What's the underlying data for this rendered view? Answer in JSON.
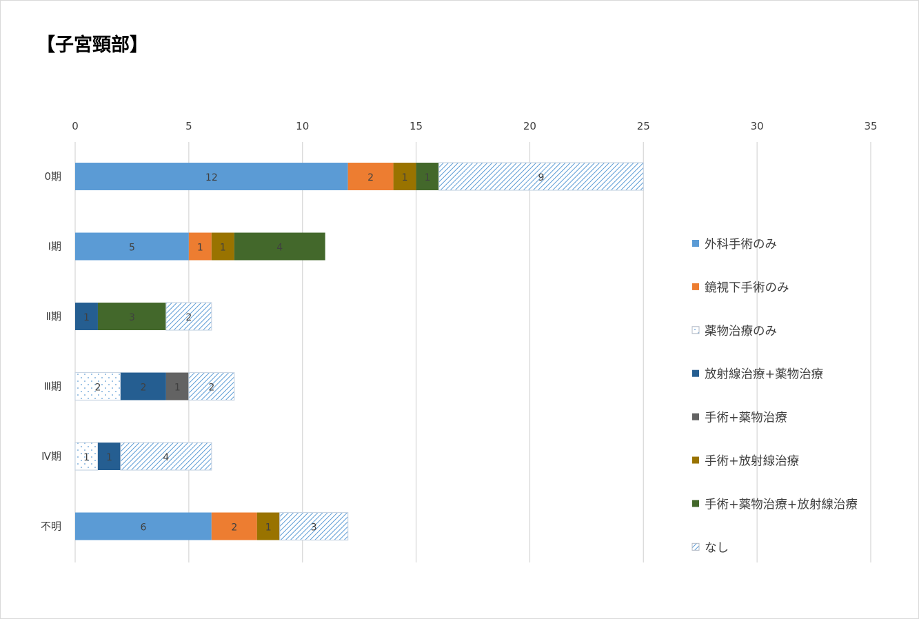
{
  "chart_data": {
    "type": "bar",
    "orientation": "horizontal",
    "stacked": true,
    "title": "【子宮頸部】",
    "xlabel": "",
    "ylabel": "",
    "xlim": [
      0,
      35
    ],
    "x_ticks": [
      0,
      5,
      10,
      15,
      20,
      25,
      30,
      35
    ],
    "grid": true,
    "legend_position": "right",
    "categories": [
      "0期",
      "Ⅰ期",
      "Ⅱ期",
      "Ⅲ期",
      "Ⅳ期",
      "不明"
    ],
    "series": [
      {
        "name": "外科手術のみ",
        "color": "#5b9bd5",
        "pattern": "solid",
        "values": [
          12,
          5,
          0,
          0,
          0,
          6
        ]
      },
      {
        "name": "鏡視下手術のみ",
        "color": "#ed7d31",
        "pattern": "solid",
        "values": [
          2,
          1,
          0,
          0,
          0,
          2
        ]
      },
      {
        "name": "薬物治療のみ",
        "color": "#5b9bd5",
        "pattern": "dots",
        "values": [
          0,
          0,
          0,
          2,
          1,
          0
        ]
      },
      {
        "name": "放射線治療+薬物治療",
        "color": "#255e91",
        "pattern": "solid",
        "values": [
          0,
          0,
          1,
          2,
          1,
          0
        ]
      },
      {
        "name": "手術+薬物治療",
        "color": "#636363",
        "pattern": "solid",
        "values": [
          0,
          0,
          0,
          1,
          0,
          0
        ]
      },
      {
        "name": "手術+放射線治療",
        "color": "#997300",
        "pattern": "solid",
        "values": [
          1,
          1,
          0,
          0,
          0,
          1
        ]
      },
      {
        "name": "手術+薬物治療+放射線治療",
        "color": "#43682b",
        "pattern": "solid",
        "values": [
          1,
          4,
          3,
          0,
          0,
          0
        ]
      },
      {
        "name": "なし",
        "color": "#5b9bd5",
        "pattern": "hatch",
        "values": [
          9,
          0,
          2,
          2,
          4,
          3
        ]
      }
    ]
  }
}
